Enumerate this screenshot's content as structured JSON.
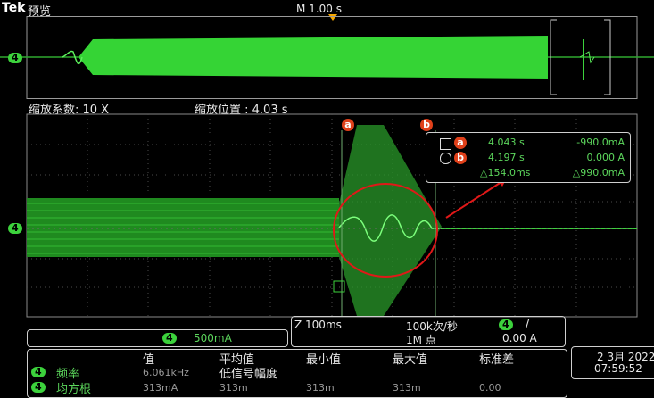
{
  "header": {
    "brand": "Tek",
    "mode": "预览",
    "timebase": "M 1.00 s"
  },
  "zoom": {
    "factor_label": "缩放系数: 10 X",
    "position_label": "缩放位置 : 4.03 s"
  },
  "channel": {
    "id": "4",
    "scale": "500mA",
    "color": "#3cd23c"
  },
  "cursors": {
    "a_label": "a",
    "b_label": "b",
    "a_time": "4.043 s",
    "a_value": "-990.0mA",
    "b_time": "4.197 s",
    "b_value": "0.000 A",
    "delta_time": "△154.0ms",
    "delta_value": "△990.0mA",
    "accent": "#e0401a"
  },
  "acquisition": {
    "zoom_scale": "Z 100ms",
    "rate": "100k次/秒",
    "points": "1M 点",
    "trigger_channel": "4",
    "trigger_slope": "/",
    "trigger_level": "0.00 A"
  },
  "datetime": {
    "date": "2 3月 2022",
    "time": "07:59:52"
  },
  "measurements": {
    "headers": [
      "值",
      "平均值",
      "最小值",
      "最大值",
      "标准差"
    ],
    "subheader": "低信号幅度",
    "rows": [
      {
        "channel": "4",
        "name": "频率",
        "value": "6.061kHz",
        "mean": "",
        "min": "",
        "max": "",
        "std": ""
      },
      {
        "channel": "4",
        "name": "均方根",
        "value": "313mA",
        "mean": "313m",
        "min": "313m",
        "max": "313m",
        "std": "0.00"
      }
    ]
  }
}
